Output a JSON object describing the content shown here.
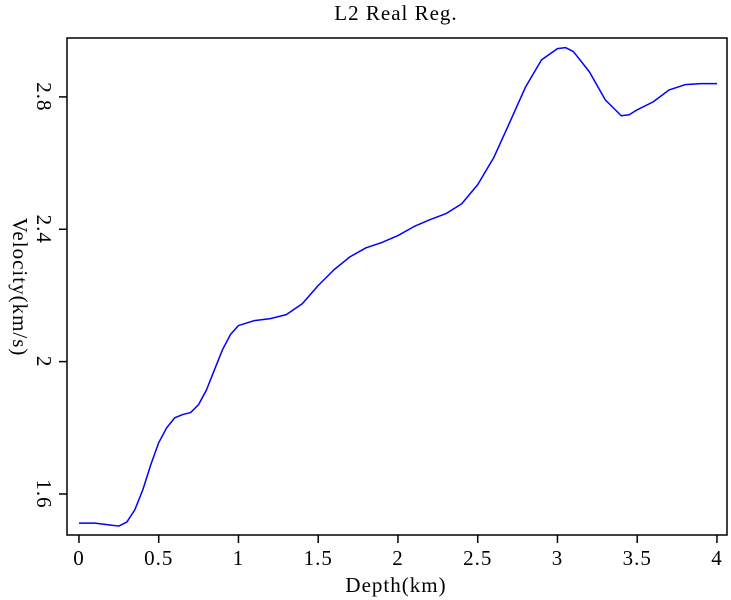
{
  "chart_data": {
    "type": "line",
    "title": "L2 Real Reg.",
    "x_label": "Depth(km)",
    "y_label": "Velocity(km/s)",
    "x": [
      0,
      0.1,
      0.2,
      0.25,
      0.3,
      0.35,
      0.4,
      0.45,
      0.5,
      0.55,
      0.6,
      0.65,
      0.7,
      0.75,
      0.8,
      0.85,
      0.9,
      0.95,
      1.0,
      1.1,
      1.2,
      1.3,
      1.4,
      1.5,
      1.6,
      1.7,
      1.8,
      1.9,
      2.0,
      2.1,
      2.2,
      2.3,
      2.4,
      2.5,
      2.6,
      2.7,
      2.8,
      2.9,
      3.0,
      3.05,
      3.1,
      3.2,
      3.3,
      3.4,
      3.45,
      3.5,
      3.6,
      3.7,
      3.8,
      3.9,
      4.0
    ],
    "series": [
      {
        "name": "velocity",
        "color": "#0000ff",
        "values": [
          1.512,
          1.512,
          1.506,
          1.503,
          1.515,
          1.552,
          1.612,
          1.688,
          1.755,
          1.8,
          1.83,
          1.84,
          1.846,
          1.87,
          1.915,
          1.976,
          2.036,
          2.082,
          2.109,
          2.124,
          2.13,
          2.142,
          2.175,
          2.23,
          2.278,
          2.317,
          2.344,
          2.36,
          2.381,
          2.408,
          2.429,
          2.447,
          2.477,
          2.535,
          2.616,
          2.722,
          2.83,
          2.912,
          2.946,
          2.949,
          2.937,
          2.876,
          2.791,
          2.743,
          2.746,
          2.761,
          2.785,
          2.821,
          2.837,
          2.84,
          2.84
        ]
      }
    ],
    "xlim": [
      -0.075,
      4.063
    ],
    "ylim": [
      1.476,
      2.978
    ],
    "xticks": [
      0,
      0.5,
      1,
      1.5,
      2,
      2.5,
      3,
      3.5,
      4
    ],
    "yticks": [
      1.6,
      2,
      2.4,
      2.8
    ]
  }
}
